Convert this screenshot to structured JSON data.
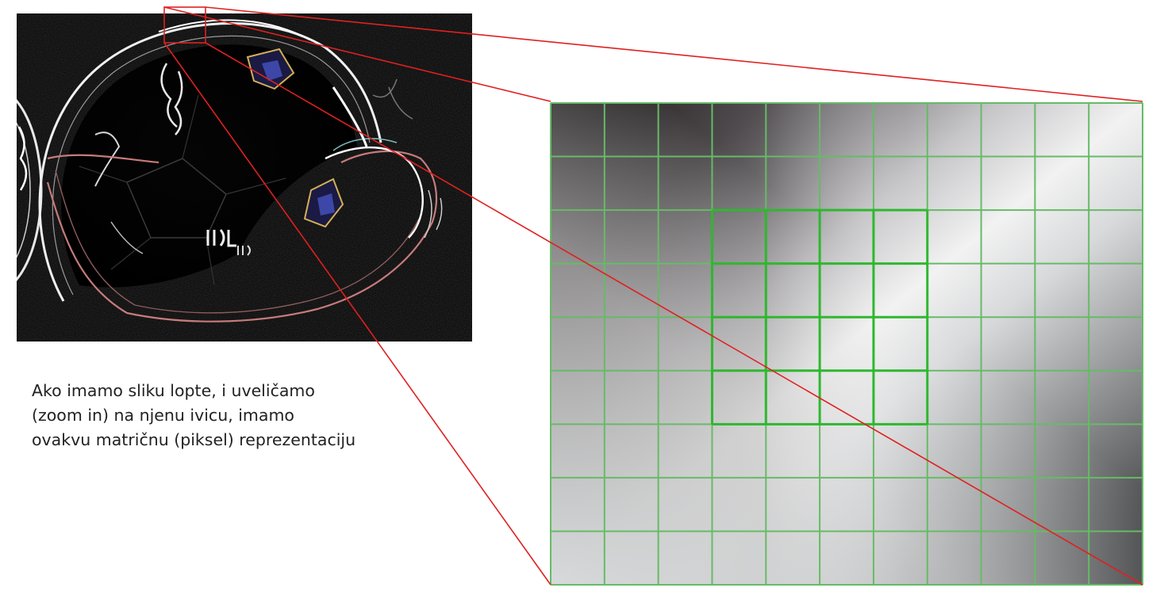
{
  "caption": {
    "lines": [
      "Ako imamo sliku lopte, i uveličamo",
      "(zoom in) na njenu ivicu, imamo",
      "ovakvu matričnu (piksel) reprezentaciju"
    ]
  },
  "pixel_grid": {
    "rows": 9,
    "cols": 11,
    "highlight": {
      "row_start": 2,
      "row_end": 5,
      "col_start": 3,
      "col_end": 6
    }
  },
  "colors": {
    "connector": "#e02020",
    "grid_line": "#66bb66",
    "highlight_line": "#2eb82e",
    "photo_background": "#000000"
  },
  "icons": {
    "source_photo": "edge-detected-ball-photo",
    "zoom_region": "zoom-selection-rectangle"
  }
}
